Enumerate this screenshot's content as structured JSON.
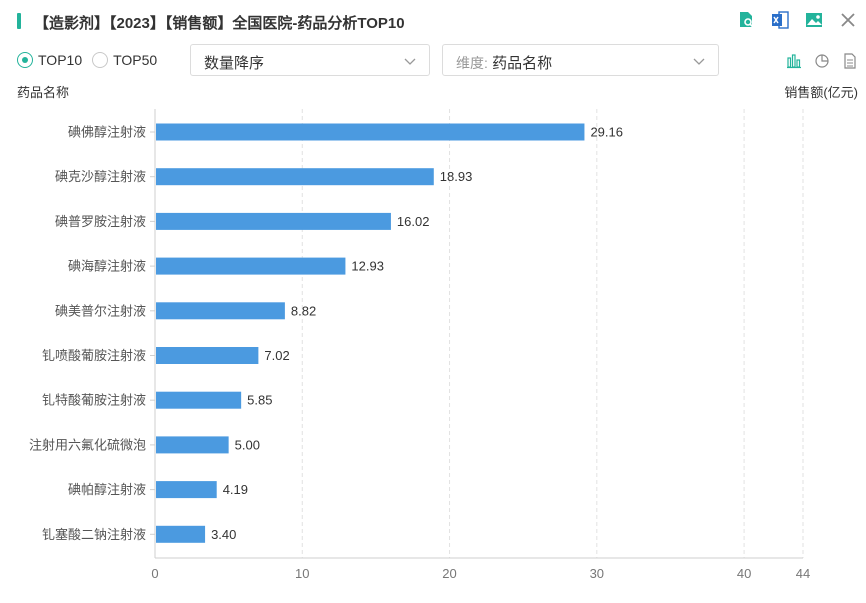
{
  "header": {
    "title": "【造影剂】【2023】【销售额】全国医院-药品分析TOP10",
    "icons": [
      "search-document-icon",
      "excel-export-icon",
      "image-export-icon",
      "close-icon"
    ]
  },
  "controls": {
    "radios": [
      {
        "label": "TOP10",
        "checked": true
      },
      {
        "label": "TOP50",
        "checked": false
      }
    ],
    "sort_select": {
      "value": "数量降序"
    },
    "dimension_select": {
      "prefix": "维度:",
      "value": "药品名称"
    },
    "chart_type_icons": [
      "bar-chart-icon",
      "pie-chart-icon",
      "table-icon"
    ]
  },
  "colors": {
    "accent": "#23b39b",
    "bar": "#4b9ae0"
  },
  "chart_data": {
    "type": "bar",
    "orientation": "horizontal",
    "ylabel": "药品名称",
    "xlabel": "销售额(亿元)",
    "categories": [
      "碘佛醇注射液",
      "碘克沙醇注射液",
      "碘普罗胺注射液",
      "碘海醇注射液",
      "碘美普尔注射液",
      "钆喷酸葡胺注射液",
      "钆特酸葡胺注射液",
      "注射用六氟化硫微泡",
      "碘帕醇注射液",
      "钆塞酸二钠注射液"
    ],
    "values": [
      29.16,
      18.93,
      16.02,
      12.93,
      8.82,
      7.02,
      5.85,
      5.0,
      4.19,
      3.4
    ],
    "value_labels": [
      "29.16",
      "18.93",
      "16.02",
      "12.93",
      "8.82",
      "7.02",
      "5.85",
      "5.00",
      "4.19",
      "3.40"
    ],
    "xlim": [
      0,
      44
    ],
    "xticks": [
      0,
      10,
      20,
      30,
      40,
      44
    ],
    "grid": true
  }
}
